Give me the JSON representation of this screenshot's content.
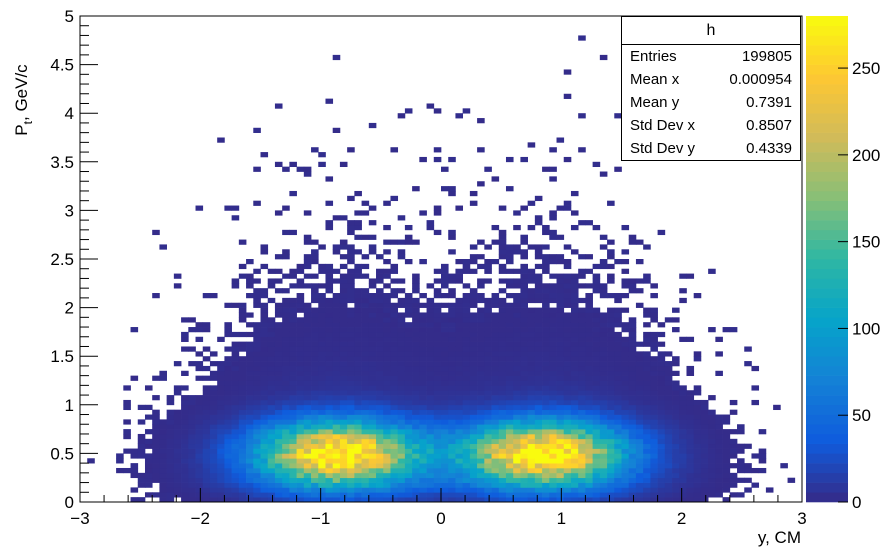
{
  "chart_data": {
    "type": "heatmap",
    "title": "",
    "xlabel": "y, CM",
    "ylabel": "P_t, GeV/c",
    "ylabel_main": "P",
    "ylabel_sub": "t",
    "ylabel_rest": ", GeV/c",
    "xlim": [
      -3,
      3
    ],
    "ylim": [
      0,
      5
    ],
    "x_ticks": [
      -3,
      -2,
      -1,
      0,
      1,
      2,
      3
    ],
    "y_ticks": [
      0,
      0.5,
      1,
      1.5,
      2,
      2.5,
      3,
      3.5,
      4,
      4.5,
      5
    ],
    "x_tick_labels": [
      "−3",
      "−2",
      "−1",
      "0",
      "1",
      "2",
      "3"
    ],
    "y_tick_labels": [
      "0",
      "0.5",
      "1",
      "1.5",
      "2",
      "2.5",
      "3",
      "3.5",
      "4",
      "4.5",
      "5"
    ],
    "bins": {
      "x": 100,
      "y": 100
    },
    "distribution": {
      "peaks": [
        {
          "x": -0.85,
          "y": 0.5,
          "sigma_x": 0.45,
          "sigma_y": 0.22
        },
        {
          "x": 0.85,
          "y": 0.5,
          "sigma_x": 0.45,
          "sigma_y": 0.22
        }
      ],
      "max_count": 275
    },
    "colorbar": {
      "range": [
        0,
        280
      ],
      "ticks": [
        0,
        50,
        100,
        150,
        200,
        250
      ],
      "tick_labels": [
        "0",
        "50",
        "100",
        "150",
        "200",
        "250"
      ],
      "palette": [
        "#352a87",
        "#0f5cdd",
        "#1481d6",
        "#06a4ca",
        "#2eb7a4",
        "#87bf77",
        "#d1bb59",
        "#fec832",
        "#f9fb0e"
      ]
    },
    "stats": {
      "name": "h",
      "rows": [
        {
          "label": "Entries",
          "value": "199805"
        },
        {
          "label": "Mean x",
          "value": "0.000954"
        },
        {
          "label": "Mean y",
          "value": "0.7391"
        },
        {
          "label": "Std Dev x",
          "value": "0.8507"
        },
        {
          "label": "Std Dev y",
          "value": "0.4339"
        }
      ]
    },
    "grid": false,
    "legend": "top-right"
  }
}
